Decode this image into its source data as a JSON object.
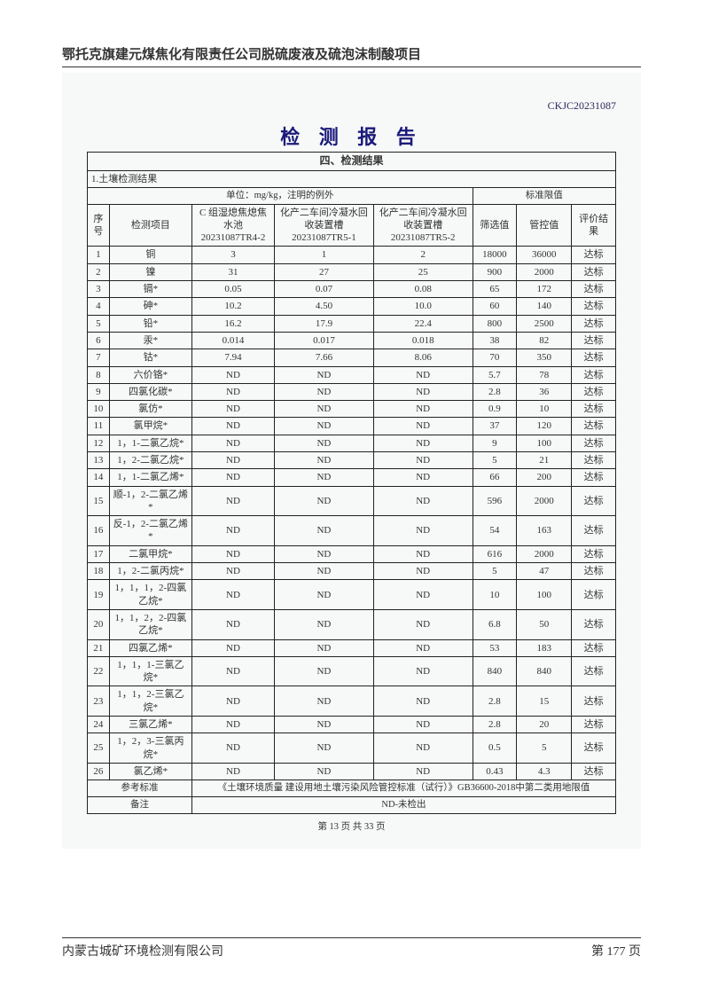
{
  "header": "鄂托克旗建元煤焦化有限责任公司脱硫废液及硫泡沫制酸项目",
  "docCode": "CKJC20231087",
  "reportTitle": "检 测 报 告",
  "sectionTitle": "四、检测结果",
  "subTitle": "1.土壤检测结果",
  "unitRow": {
    "left": "单位：mg/kg，注明的例外",
    "right": "标准限值"
  },
  "headers": {
    "idx": "序号",
    "item": "检测项目",
    "c1": "C 组湿熄焦熄焦水池20231087TR4-2",
    "c2": "化产二车间冷凝水回收装置槽20231087TR5-1",
    "c3": "化产二车间冷凝水回收装置槽20231087TR5-2",
    "sx": "筛选值",
    "gk": "管控值",
    "res": "评价结果"
  },
  "rows": [
    {
      "n": "1",
      "i": "铜",
      "a": "3",
      "b": "1",
      "c": "2",
      "s": "18000",
      "g": "36000",
      "r": "达标"
    },
    {
      "n": "2",
      "i": "镍",
      "a": "31",
      "b": "27",
      "c": "25",
      "s": "900",
      "g": "2000",
      "r": "达标"
    },
    {
      "n": "3",
      "i": "镉*",
      "a": "0.05",
      "b": "0.07",
      "c": "0.08",
      "s": "65",
      "g": "172",
      "r": "达标"
    },
    {
      "n": "4",
      "i": "砷*",
      "a": "10.2",
      "b": "4.50",
      "c": "10.0",
      "s": "60",
      "g": "140",
      "r": "达标"
    },
    {
      "n": "5",
      "i": "铅*",
      "a": "16.2",
      "b": "17.9",
      "c": "22.4",
      "s": "800",
      "g": "2500",
      "r": "达标"
    },
    {
      "n": "6",
      "i": "汞*",
      "a": "0.014",
      "b": "0.017",
      "c": "0.018",
      "s": "38",
      "g": "82",
      "r": "达标"
    },
    {
      "n": "7",
      "i": "钴*",
      "a": "7.94",
      "b": "7.66",
      "c": "8.06",
      "s": "70",
      "g": "350",
      "r": "达标"
    },
    {
      "n": "8",
      "i": "六价铬*",
      "a": "ND",
      "b": "ND",
      "c": "ND",
      "s": "5.7",
      "g": "78",
      "r": "达标"
    },
    {
      "n": "9",
      "i": "四氯化碳*",
      "a": "ND",
      "b": "ND",
      "c": "ND",
      "s": "2.8",
      "g": "36",
      "r": "达标"
    },
    {
      "n": "10",
      "i": "氯仿*",
      "a": "ND",
      "b": "ND",
      "c": "ND",
      "s": "0.9",
      "g": "10",
      "r": "达标"
    },
    {
      "n": "11",
      "i": "氯甲烷*",
      "a": "ND",
      "b": "ND",
      "c": "ND",
      "s": "37",
      "g": "120",
      "r": "达标"
    },
    {
      "n": "12",
      "i": "1，1-二氯乙烷*",
      "a": "ND",
      "b": "ND",
      "c": "ND",
      "s": "9",
      "g": "100",
      "r": "达标"
    },
    {
      "n": "13",
      "i": "1，2-二氯乙烷*",
      "a": "ND",
      "b": "ND",
      "c": "ND",
      "s": "5",
      "g": "21",
      "r": "达标"
    },
    {
      "n": "14",
      "i": "1，1-二氯乙烯*",
      "a": "ND",
      "b": "ND",
      "c": "ND",
      "s": "66",
      "g": "200",
      "r": "达标"
    },
    {
      "n": "15",
      "i": "顺-1，2-二氯乙烯*",
      "a": "ND",
      "b": "ND",
      "c": "ND",
      "s": "596",
      "g": "2000",
      "r": "达标"
    },
    {
      "n": "16",
      "i": "反-1，2-二氯乙烯*",
      "a": "ND",
      "b": "ND",
      "c": "ND",
      "s": "54",
      "g": "163",
      "r": "达标"
    },
    {
      "n": "17",
      "i": "二氯甲烷*",
      "a": "ND",
      "b": "ND",
      "c": "ND",
      "s": "616",
      "g": "2000",
      "r": "达标"
    },
    {
      "n": "18",
      "i": "1，2-二氯丙烷*",
      "a": "ND",
      "b": "ND",
      "c": "ND",
      "s": "5",
      "g": "47",
      "r": "达标"
    },
    {
      "n": "19",
      "i": "1，1，1，2-四氯乙烷*",
      "a": "ND",
      "b": "ND",
      "c": "ND",
      "s": "10",
      "g": "100",
      "r": "达标"
    },
    {
      "n": "20",
      "i": "1，1，2，2-四氯乙烷*",
      "a": "ND",
      "b": "ND",
      "c": "ND",
      "s": "6.8",
      "g": "50",
      "r": "达标"
    },
    {
      "n": "21",
      "i": "四氯乙烯*",
      "a": "ND",
      "b": "ND",
      "c": "ND",
      "s": "53",
      "g": "183",
      "r": "达标"
    },
    {
      "n": "22",
      "i": "1，1，1-三氯乙烷*",
      "a": "ND",
      "b": "ND",
      "c": "ND",
      "s": "840",
      "g": "840",
      "r": "达标"
    },
    {
      "n": "23",
      "i": "1，1，2-三氯乙烷*",
      "a": "ND",
      "b": "ND",
      "c": "ND",
      "s": "2.8",
      "g": "15",
      "r": "达标"
    },
    {
      "n": "24",
      "i": "三氯乙烯*",
      "a": "ND",
      "b": "ND",
      "c": "ND",
      "s": "2.8",
      "g": "20",
      "r": "达标"
    },
    {
      "n": "25",
      "i": "1，2，3-三氯丙烷*",
      "a": "ND",
      "b": "ND",
      "c": "ND",
      "s": "0.5",
      "g": "5",
      "r": "达标"
    },
    {
      "n": "26",
      "i": "氯乙烯*",
      "a": "ND",
      "b": "ND",
      "c": "ND",
      "s": "0.43",
      "g": "4.3",
      "r": "达标"
    }
  ],
  "refLabel": "参考标准",
  "refText": "《土壤环境质量 建设用地土壤污染风险管控标准（试行）》GB36600-2018中第二类用地限值",
  "noteLabel": "备注",
  "noteText": "ND-未检出",
  "innerFooter": "第 13 页 共 33 页",
  "footerLeft": "内蒙古城矿环境检测有限公司",
  "footerRight": "第 177 页"
}
